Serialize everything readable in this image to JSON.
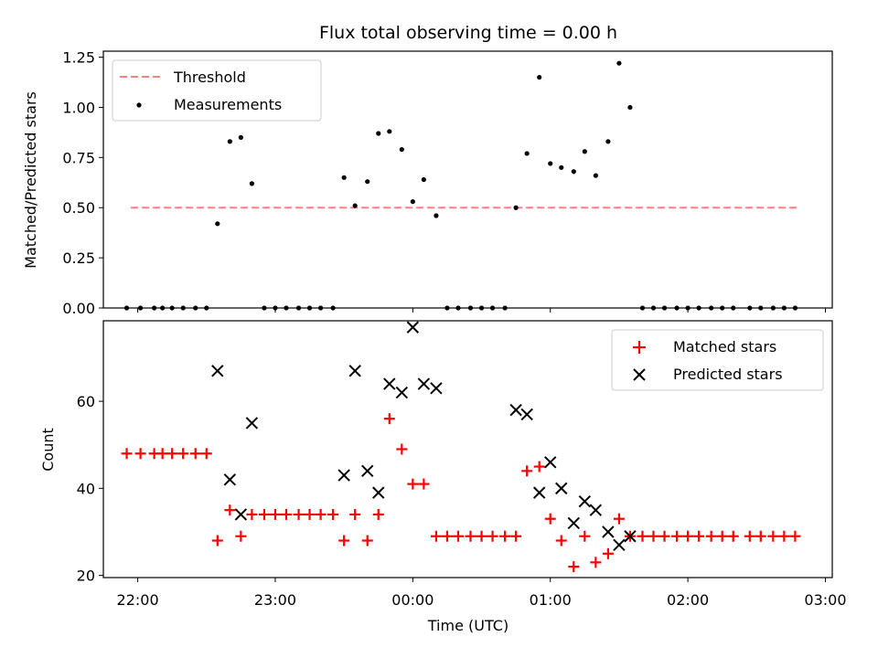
{
  "title": "Flux total observing time = 0.00 h",
  "x_tick_labels": [
    "22:00",
    "23:00",
    "00:00",
    "01:00",
    "02:00",
    "03:00"
  ],
  "colors": {
    "threshold": "#ff7f7f",
    "measurement": "#000000",
    "matched": "#ff0000",
    "predicted": "#000000"
  },
  "chart_data": [
    {
      "type": "scatter",
      "title": "Flux total observing time = 0.00 h",
      "xlabel": "",
      "ylabel": "Matched/Predicted stars",
      "xlim": [
        21.75,
        27.05
      ],
      "ylim": [
        0,
        1.28
      ],
      "y_ticks": [
        "0.00",
        "0.25",
        "0.50",
        "0.75",
        "1.00",
        "1.25"
      ],
      "grid": false,
      "legend_position": "top-left",
      "threshold": {
        "name": "Threshold",
        "y": 0.5,
        "x_start": 21.95,
        "x_end": 26.8
      },
      "series": [
        {
          "name": "Measurements",
          "x": [
            21.92,
            22.02,
            22.12,
            22.18,
            22.25,
            22.33,
            22.42,
            22.5,
            22.58,
            22.67,
            22.75,
            22.83,
            22.92,
            23.0,
            23.08,
            23.17,
            23.25,
            23.33,
            23.42,
            23.5,
            23.58,
            23.67,
            23.75,
            23.83,
            23.92,
            24.0,
            24.08,
            24.17,
            24.25,
            24.33,
            24.42,
            24.5,
            24.58,
            24.67,
            24.75,
            24.83,
            24.92,
            25.0,
            25.08,
            25.17,
            25.25,
            25.33,
            25.42,
            25.5,
            25.58,
            25.67,
            25.75,
            25.83,
            25.92,
            26.0,
            26.08,
            26.17,
            26.25,
            26.33,
            26.45,
            26.53,
            26.62,
            26.7,
            26.78
          ],
          "y": [
            0,
            0,
            0,
            0,
            0,
            0,
            0,
            0,
            0.42,
            0.83,
            0.85,
            0.62,
            0,
            0,
            0,
            0,
            0,
            0,
            0,
            0.65,
            0.51,
            0.63,
            0.87,
            0.88,
            0.79,
            0.53,
            0.64,
            0.46,
            0,
            0,
            0,
            0,
            0,
            0,
            0.5,
            0.77,
            1.15,
            0.72,
            0.7,
            0.68,
            0.78,
            0.66,
            0.83,
            1.22,
            1.0,
            0,
            0,
            0,
            0,
            0,
            0,
            0,
            0,
            0,
            0,
            0,
            0,
            0,
            0
          ]
        }
      ]
    },
    {
      "type": "scatter",
      "xlabel": "Time (UTC)",
      "ylabel": "Count",
      "xlim": [
        21.75,
        27.05
      ],
      "ylim": [
        19.5,
        78.5
      ],
      "y_ticks": [
        "20",
        "40",
        "60"
      ],
      "grid": false,
      "legend_position": "top-right",
      "series": [
        {
          "name": "Matched stars",
          "x": [
            21.92,
            22.02,
            22.12,
            22.18,
            22.25,
            22.33,
            22.42,
            22.5,
            22.58,
            22.67,
            22.75,
            22.83,
            22.92,
            23.0,
            23.08,
            23.17,
            23.25,
            23.33,
            23.42,
            23.5,
            23.58,
            23.67,
            23.75,
            23.83,
            23.92,
            24.0,
            24.08,
            24.17,
            24.25,
            24.33,
            24.42,
            24.5,
            24.58,
            24.67,
            24.75,
            24.83,
            24.92,
            25.0,
            25.08,
            25.17,
            25.25,
            25.33,
            25.42,
            25.5,
            25.58,
            25.67,
            25.75,
            25.83,
            25.92,
            26.0,
            26.08,
            26.17,
            26.25,
            26.33,
            26.45,
            26.53,
            26.62,
            26.7,
            26.78
          ],
          "y": [
            48,
            48,
            48,
            48,
            48,
            48,
            48,
            48,
            28,
            35,
            29,
            34,
            34,
            34,
            34,
            34,
            34,
            34,
            34,
            28,
            34,
            28,
            34,
            56,
            49,
            41,
            41,
            29,
            29,
            29,
            29,
            29,
            29,
            29,
            29,
            44,
            45,
            33,
            28,
            22,
            29,
            23,
            25,
            33,
            29,
            29,
            29,
            29,
            29,
            29,
            29,
            29,
            29,
            29,
            29,
            29,
            29,
            29,
            29
          ]
        },
        {
          "name": "Predicted stars",
          "x": [
            22.58,
            22.67,
            22.75,
            22.83,
            23.5,
            23.58,
            23.67,
            23.75,
            23.83,
            23.92,
            24.0,
            24.08,
            24.17,
            24.75,
            24.83,
            24.92,
            25.0,
            25.08,
            25.17,
            25.25,
            25.33,
            25.42,
            25.5,
            25.58
          ],
          "y": [
            67,
            42,
            34,
            55,
            43,
            67,
            44,
            39,
            64,
            62,
            77,
            64,
            63,
            58,
            57,
            39,
            46,
            40,
            32,
            37,
            35,
            30,
            27,
            29
          ]
        }
      ]
    }
  ]
}
